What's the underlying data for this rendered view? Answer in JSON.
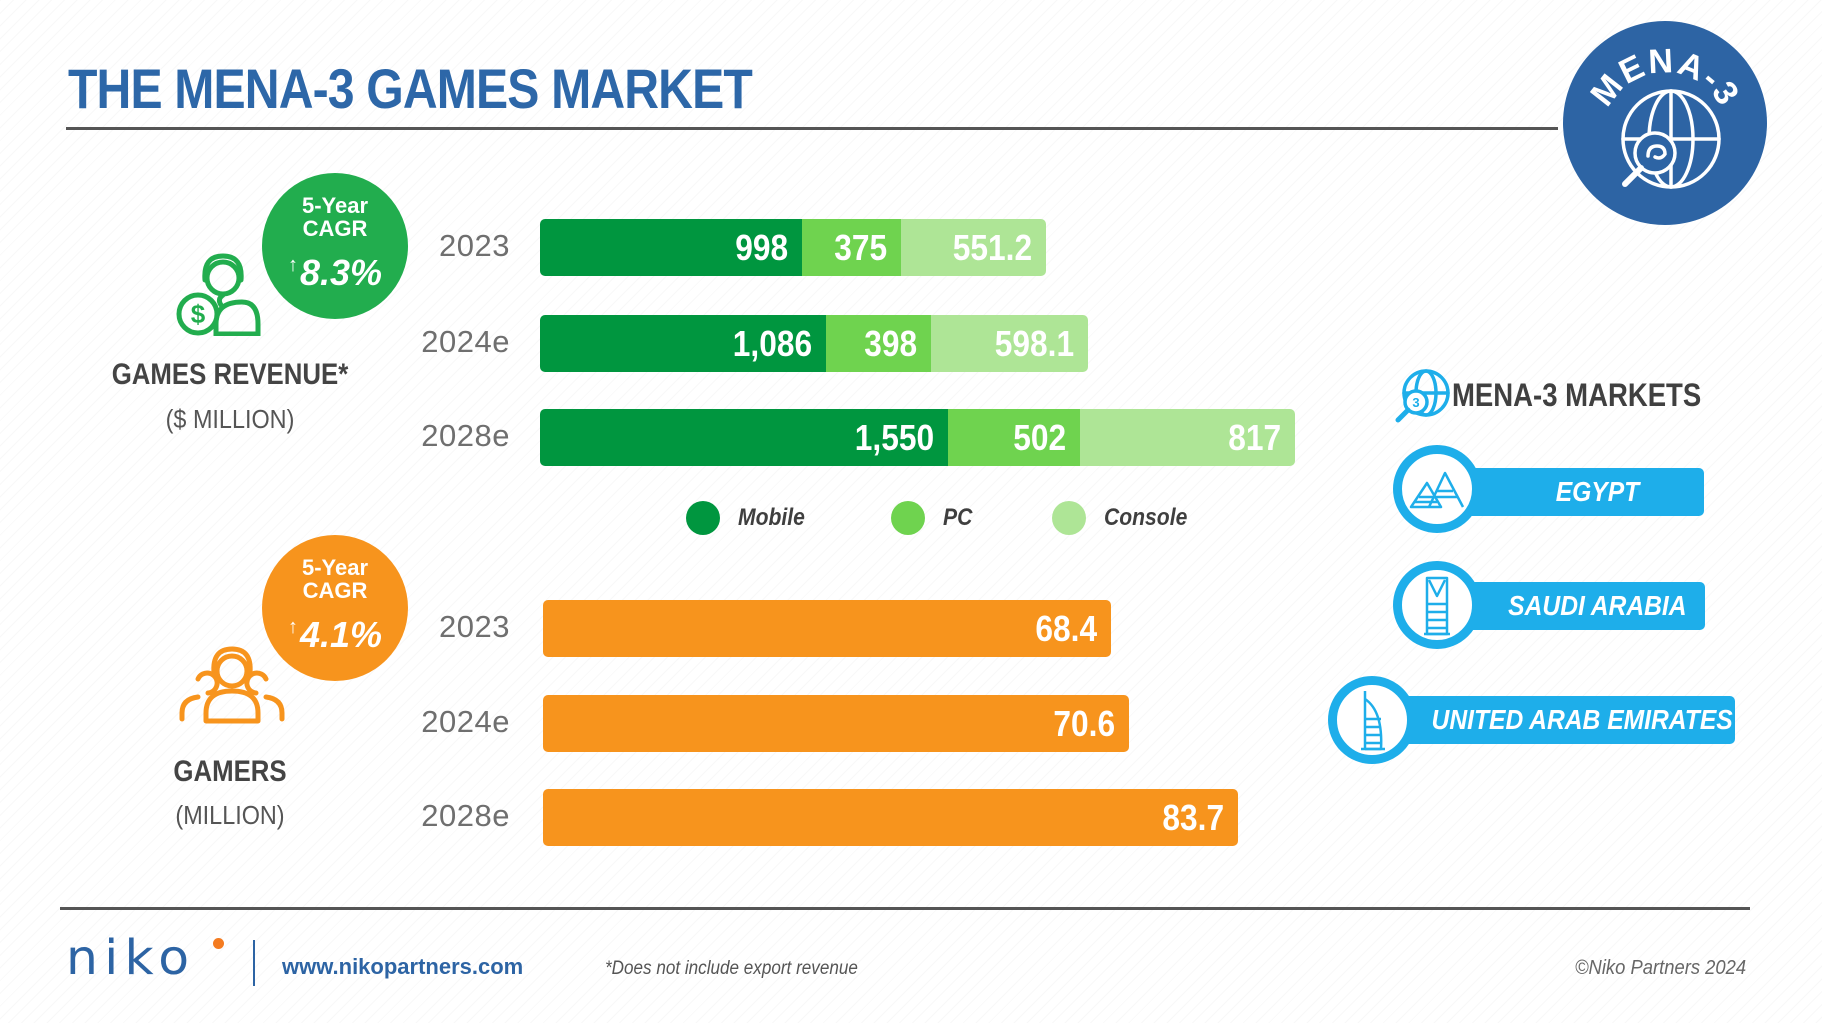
{
  "header": {
    "title": "THE MENA-3 GAMES MARKET",
    "badge_text": "MENA-3",
    "badge_icon": "globe-search-icon"
  },
  "colors": {
    "title_blue": "#2d67a8",
    "mobile": "#00963f",
    "pc": "#6fd34f",
    "console": "#aee596",
    "revenue_cagr": "#22ad4e",
    "gamers": "#f7941d",
    "market_blue": "#1eaeea"
  },
  "revenue": {
    "title": "GAMES REVENUE*",
    "subtitle": "($ MILLION)",
    "icon": "gamer-headset-dollar-icon",
    "cagr": {
      "line1": "5-Year",
      "line2": "CAGR",
      "arrow": "↑",
      "value": "8.3%"
    }
  },
  "gamers": {
    "title": "GAMERS",
    "subtitle": "(MILLION)",
    "icon": "gamer-group-icon",
    "cagr": {
      "line1": "5-Year",
      "line2": "CAGR",
      "arrow": "↑",
      "value": "4.1%"
    }
  },
  "chart_data": [
    {
      "type": "bar",
      "orientation": "horizontal",
      "stacked": true,
      "title": "GAMES REVENUE* ($ MILLION)",
      "categories": [
        "2023",
        "2024e",
        "2028e"
      ],
      "series": [
        {
          "name": "Mobile",
          "values": [
            998,
            1086,
            1550
          ],
          "labels": [
            "998",
            "1,086",
            "1,550"
          ]
        },
        {
          "name": "PC",
          "values": [
            375,
            398,
            502
          ],
          "labels": [
            "375",
            "398",
            "502"
          ]
        },
        {
          "name": "Console",
          "values": [
            551.2,
            598.1,
            817
          ],
          "labels": [
            "551.2",
            "598.1",
            "817"
          ]
        }
      ],
      "legend": [
        "Mobile",
        "PC",
        "Console"
      ],
      "legend_position": "bottom",
      "grid": false,
      "xlabel": "",
      "ylabel": ""
    },
    {
      "type": "bar",
      "orientation": "horizontal",
      "title": "GAMERS (MILLION)",
      "categories": [
        "2023",
        "2024e",
        "2028e"
      ],
      "values": [
        68.4,
        70.6,
        83.7
      ],
      "labels": [
        "68.4",
        "70.6",
        "83.7"
      ],
      "grid": false,
      "xlabel": "",
      "ylabel": ""
    }
  ],
  "markets": {
    "title": "MENA-3 MARKETS",
    "icon": "globe-3-icon",
    "items": [
      {
        "label": "EGYPT",
        "icon": "pyramids-icon"
      },
      {
        "label": "SAUDI ARABIA",
        "icon": "kingdom-tower-icon"
      },
      {
        "label": "UNITED ARAB EMIRATES",
        "icon": "burj-al-arab-icon"
      }
    ]
  },
  "footer": {
    "logo": "NIKO",
    "website": "www.nikopartners.com",
    "footnote": "*Does not include export revenue",
    "copyright": "©Niko Partners 2024"
  }
}
